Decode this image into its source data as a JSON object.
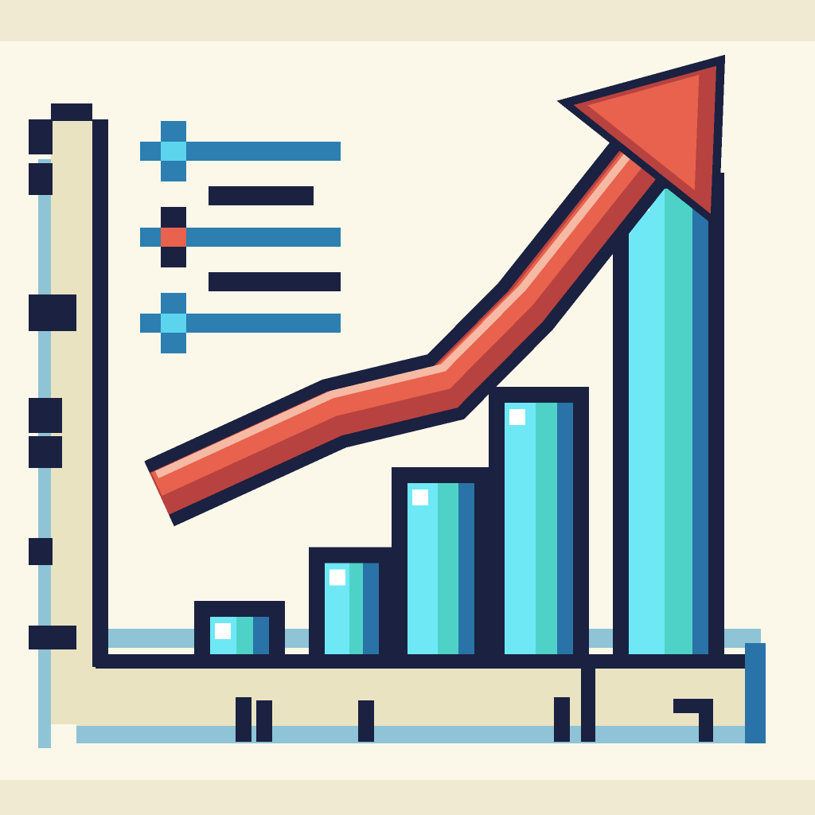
{
  "colors": {
    "background": "#fbf8ea",
    "frame": "#f1ead2",
    "outline": "#1b2140",
    "bar_fill": "#4ed2c8",
    "bar_light": "#6ee8f5",
    "bar_shade": "#2a73a8",
    "arrow_fill": "#e8624e",
    "arrow_shade": "#b8423f",
    "arrow_highlight": "#f6b9a4",
    "axis_band": "#e9e3c2",
    "axis_edge": "#8ec4d6",
    "legend_line": "#2c7fb0",
    "legend_marker_blue": "#5cd4ee",
    "legend_marker_red": "#e8624e"
  },
  "icons": {
    "trend": "up-arrow-icon",
    "legend_blue": "square-marker-icon",
    "legend_red": "square-marker-icon"
  },
  "chart_data": {
    "type": "bar",
    "categories": [
      "",
      "",
      "",
      "",
      ""
    ],
    "values": [
      1,
      2,
      3.5,
      5,
      9
    ],
    "ylim": [
      0,
      10
    ],
    "trend": {
      "type": "line",
      "values": [
        3,
        4.5,
        5,
        6.5,
        11
      ],
      "arrow_at_end": true
    },
    "legend": {
      "placement": "top-left",
      "entries": [
        {
          "marker_color": "#5cd4ee"
        },
        {
          "marker_color": "#e8624e"
        },
        {
          "marker_color": "#5cd4ee"
        }
      ]
    },
    "grid": false,
    "title": "",
    "xlabel": "",
    "ylabel": ""
  }
}
